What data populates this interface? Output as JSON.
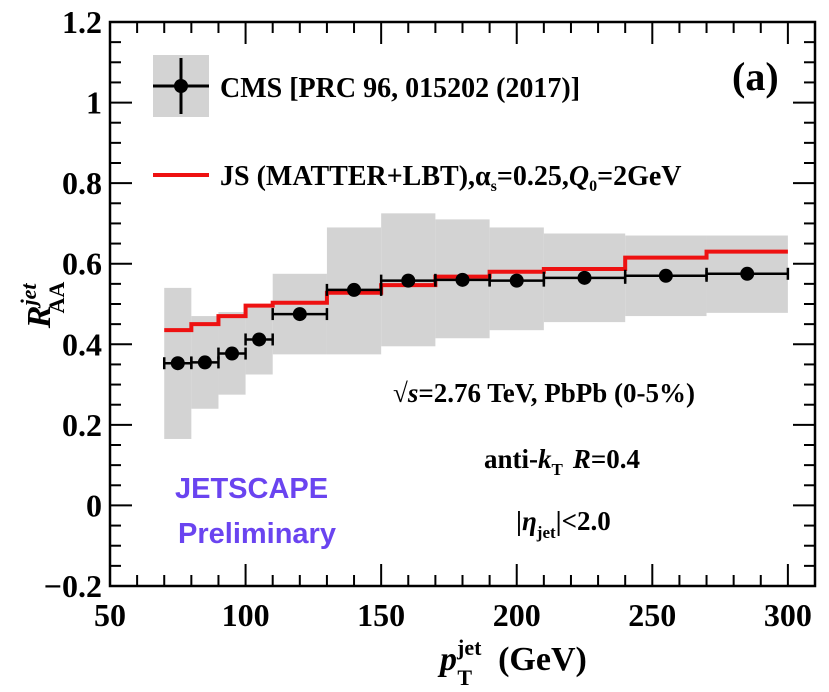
{
  "chart_data": {
    "type": "line",
    "panel_label": "(a)",
    "xlabel": {
      "base": "p",
      "sup": "jet",
      "sub": "T",
      "unit": "(GeV)"
    },
    "ylabel": {
      "base": "R",
      "sup": "jet",
      "sub": "AA"
    },
    "xlim": [
      50,
      310
    ],
    "ylim": [
      -0.2,
      1.2
    ],
    "xticks": [
      50,
      100,
      150,
      200,
      250,
      300
    ],
    "xtick_labels": [
      "50",
      "100",
      "150",
      "200",
      "250",
      "300"
    ],
    "yticks": [
      -0.2,
      0,
      0.2,
      0.4,
      0.6,
      0.8,
      1.0,
      1.2
    ],
    "ytick_labels": [
      "−0.2",
      "0",
      "0.2",
      "0.4",
      "0.6",
      "0.8",
      "1",
      "1.2"
    ],
    "legend": {
      "cms": "CMS [PRC 96, 015202 (2017)]",
      "js_prefix": "JS (MATTER+LBT),",
      "js_alpha": "α",
      "js_alpha_sub": "s",
      "js_mid": "=0.25,",
      "js_q": "Q",
      "js_q_sub": "0",
      "js_suffix": "=2GeV"
    },
    "annotations": {
      "energy_sqrt": "√",
      "energy_s": "s",
      "energy_rest": "=2.76 TeV, PbPb (0-5%)",
      "algo_prefix": "anti-",
      "algo_k": "k",
      "algo_k_sub": "T",
      "algo_r": "R",
      "algo_r_val": "=0.4",
      "eta_open": "|",
      "eta_sym": "η",
      "eta_sub": "jet",
      "eta_close": "|<2.0"
    },
    "watermark": [
      "JETSCAPE",
      "Preliminary"
    ],
    "series": [
      {
        "name": "CMS",
        "kind": "points",
        "color": "#000000",
        "band_color": "#d3d3d3",
        "points": [
          {
            "x": 75,
            "xlo": 70,
            "xhi": 80,
            "y": 0.353,
            "sys_lo": 0.165,
            "sys_hi": 0.54
          },
          {
            "x": 85,
            "xlo": 80,
            "xhi": 90,
            "y": 0.355,
            "sys_lo": 0.24,
            "sys_hi": 0.47
          },
          {
            "x": 95,
            "xlo": 90,
            "xhi": 100,
            "y": 0.377,
            "sys_lo": 0.275,
            "sys_hi": 0.48
          },
          {
            "x": 105,
            "xlo": 100,
            "xhi": 110,
            "y": 0.412,
            "sys_lo": 0.325,
            "sys_hi": 0.5
          },
          {
            "x": 120,
            "xlo": 110,
            "xhi": 130,
            "y": 0.475,
            "sys_lo": 0.375,
            "sys_hi": 0.575
          },
          {
            "x": 140,
            "xlo": 130,
            "xhi": 150,
            "y": 0.535,
            "sys_lo": 0.375,
            "sys_hi": 0.69
          },
          {
            "x": 160,
            "xlo": 150,
            "xhi": 170,
            "y": 0.558,
            "sys_lo": 0.395,
            "sys_hi": 0.725
          },
          {
            "x": 180,
            "xlo": 170,
            "xhi": 190,
            "y": 0.56,
            "sys_lo": 0.415,
            "sys_hi": 0.71
          },
          {
            "x": 200,
            "xlo": 190,
            "xhi": 210,
            "y": 0.558,
            "sys_lo": 0.435,
            "sys_hi": 0.69
          },
          {
            "x": 225,
            "xlo": 210,
            "xhi": 240,
            "y": 0.565,
            "sys_lo": 0.455,
            "sys_hi": 0.675
          },
          {
            "x": 255,
            "xlo": 240,
            "xhi": 270,
            "y": 0.57,
            "sys_lo": 0.47,
            "sys_hi": 0.67
          },
          {
            "x": 285,
            "xlo": 270,
            "xhi": 300,
            "y": 0.575,
            "sys_lo": 0.478,
            "sys_hi": 0.67
          }
        ]
      },
      {
        "name": "JS (MATTER+LBT)",
        "kind": "step",
        "color": "#ee1111",
        "bins": [
          {
            "xlo": 70,
            "xhi": 80,
            "y": 0.435
          },
          {
            "xlo": 80,
            "xhi": 90,
            "y": 0.45
          },
          {
            "xlo": 90,
            "xhi": 100,
            "y": 0.47
          },
          {
            "xlo": 100,
            "xhi": 110,
            "y": 0.496
          },
          {
            "xlo": 110,
            "xhi": 130,
            "y": 0.503
          },
          {
            "xlo": 130,
            "xhi": 150,
            "y": 0.528
          },
          {
            "xlo": 150,
            "xhi": 170,
            "y": 0.547
          },
          {
            "xlo": 170,
            "xhi": 190,
            "y": 0.568
          },
          {
            "xlo": 190,
            "xhi": 210,
            "y": 0.58
          },
          {
            "xlo": 210,
            "xhi": 240,
            "y": 0.587
          },
          {
            "xlo": 240,
            "xhi": 270,
            "y": 0.615
          },
          {
            "xlo": 270,
            "xhi": 300,
            "y": 0.63
          }
        ]
      }
    ]
  }
}
